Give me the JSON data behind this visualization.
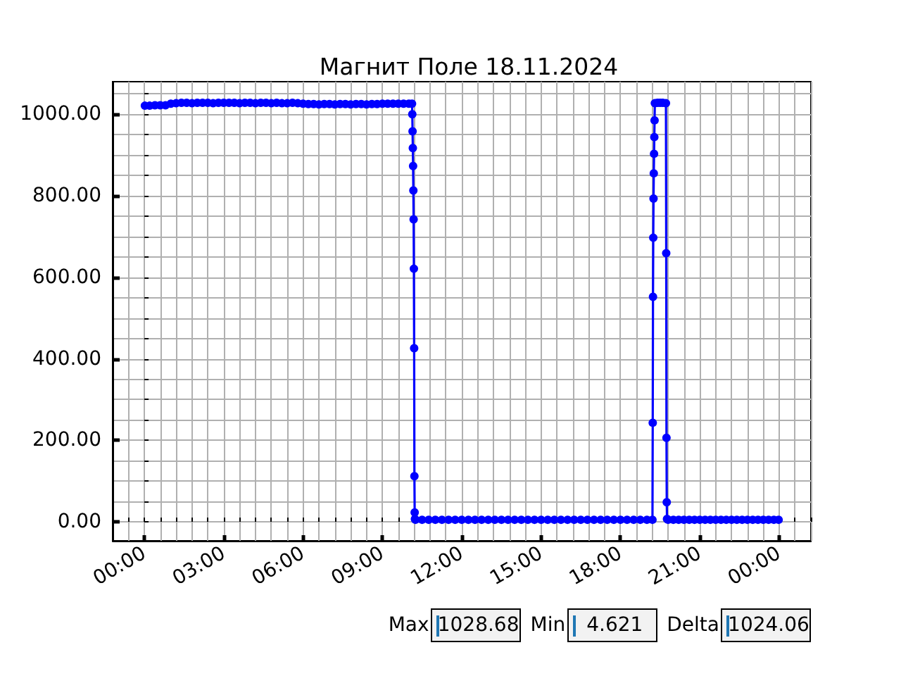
{
  "chart_data": {
    "type": "line",
    "title": "Магнит Поле 18.11.2024",
    "x": [
      0.02,
      0.2,
      0.4,
      0.6,
      0.8,
      1,
      1.2,
      1.4,
      1.6,
      1.8,
      2,
      2.2,
      2.4,
      2.6,
      2.8,
      3,
      3.2,
      3.4,
      3.6,
      3.8,
      4,
      4.2,
      4.4,
      4.6,
      4.8,
      5,
      5.2,
      5.4,
      5.6,
      5.8,
      6,
      6.2,
      6.4,
      6.6,
      6.8,
      7,
      7.2,
      7.4,
      7.6,
      7.8,
      8,
      8.2,
      8.4,
      8.6,
      8.8,
      9,
      9.2,
      9.4,
      9.6,
      9.8,
      10,
      10.12,
      10.13,
      10.14,
      10.15,
      10.16,
      10.17,
      10.18,
      10.19,
      10.2,
      10.21,
      10.22,
      10.23,
      10.25,
      10.5,
      10.75,
      11,
      11.25,
      11.5,
      11.75,
      12,
      12.25,
      12.5,
      12.75,
      13,
      13.25,
      13.5,
      13.75,
      14,
      14.25,
      14.5,
      14.75,
      15,
      15.25,
      15.5,
      15.75,
      16,
      16.25,
      16.5,
      16.75,
      17,
      17.25,
      17.5,
      17.75,
      18,
      18.25,
      18.5,
      18.75,
      19,
      19.21,
      19.22,
      19.23,
      19.24,
      19.25,
      19.26,
      19.27,
      19.28,
      19.29,
      19.3,
      19.4,
      19.5,
      19.6,
      19.72,
      19.73,
      19.74,
      19.75,
      19.76,
      19.8,
      20,
      20.2,
      20.4,
      20.6,
      20.8,
      21,
      21.2,
      21.4,
      21.6,
      21.8,
      22,
      22.2,
      22.4,
      22.6,
      22.8,
      23,
      23.2,
      23.4,
      23.6,
      23.8,
      23.98
    ],
    "values": [
      1021,
      1021,
      1022,
      1022,
      1022,
      1026,
      1027,
      1028,
      1028,
      1027,
      1028,
      1028,
      1028,
      1027,
      1028,
      1028,
      1028,
      1028,
      1027,
      1028,
      1028,
      1027,
      1028,
      1028,
      1027,
      1028,
      1027,
      1027,
      1028,
      1027,
      1026,
      1025,
      1025,
      1024,
      1025,
      1025,
      1024,
      1025,
      1025,
      1024,
      1025,
      1025,
      1024,
      1025,
      1025,
      1026,
      1026,
      1026,
      1026,
      1026,
      1026,
      1026,
      1000,
      958,
      917,
      873,
      813,
      742,
      621,
      426,
      112,
      23,
      7,
      5,
      5,
      5,
      5,
      5,
      5,
      5,
      5,
      5,
      5,
      5,
      5,
      5,
      5,
      5,
      5,
      5,
      5,
      5,
      5,
      5,
      5,
      5,
      5,
      5,
      5,
      5,
      5,
      5,
      5,
      5,
      5,
      5,
      5,
      5,
      5,
      5,
      243,
      552,
      697,
      793,
      855,
      903,
      944,
      985,
      1027,
      1028,
      1028,
      1028,
      1027,
      659,
      206,
      48,
      7,
      5,
      5,
      5,
      5,
      5,
      5,
      5,
      5,
      5,
      5,
      5,
      5,
      5,
      5,
      5,
      5,
      5,
      5,
      5,
      5,
      5,
      5
    ],
    "color": "#0000ff",
    "marker": "circle",
    "line_style": "solid",
    "xlim": [
      -1.2,
      25.2
    ],
    "ylim": [
      -46.6,
      1079.9
    ],
    "xticks": [
      {
        "value": 0,
        "label": "00:00"
      },
      {
        "value": 3,
        "label": "03:00"
      },
      {
        "value": 6,
        "label": "06:00"
      },
      {
        "value": 9,
        "label": "09:00"
      },
      {
        "value": 12,
        "label": "12:00"
      },
      {
        "value": 15,
        "label": "15:00"
      },
      {
        "value": 18,
        "label": "18:00"
      },
      {
        "value": 21,
        "label": "21:00"
      },
      {
        "value": 24,
        "label": "00:00"
      }
    ],
    "yticks": [
      {
        "value": 0,
        "label": "0.00"
      },
      {
        "value": 200,
        "label": "200.00"
      },
      {
        "value": 400,
        "label": "400.00"
      },
      {
        "value": 600,
        "label": "600.00"
      },
      {
        "value": 800,
        "label": "800.00"
      },
      {
        "value": 1000,
        "label": "1000.00"
      }
    ],
    "grid": true,
    "annotations": [
      "Max",
      "1028.68",
      "Min",
      "4.621",
      "Delta",
      "1024.06"
    ]
  }
}
